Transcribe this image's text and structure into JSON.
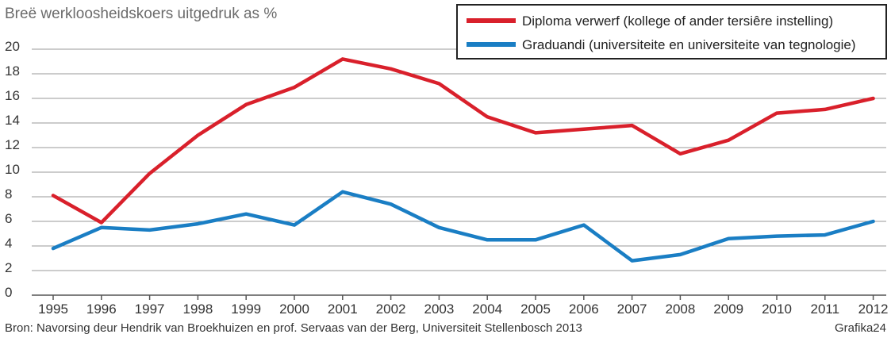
{
  "chart_data": {
    "type": "line",
    "title": "Breë werkloosheidskoers uitgedruk as %",
    "x": [
      "1995",
      "1996",
      "1997",
      "1998",
      "1999",
      "2000",
      "2001",
      "2002",
      "2003",
      "2004",
      "2005",
      "2006",
      "2007",
      "2008",
      "2009",
      "2010",
      "2011",
      "2012"
    ],
    "ylim": [
      0,
      20
    ],
    "yticks": [
      "0",
      "2",
      "4",
      "6",
      "8",
      "10",
      "12",
      "14",
      "16",
      "18",
      "20"
    ],
    "grid": true,
    "legend_placement": "top-right",
    "series": [
      {
        "name": "Diploma verwerf (kollege of ander tersiêre instelling)",
        "color": "#d9202b",
        "values": [
          8.1,
          5.9,
          9.9,
          13.0,
          15.5,
          16.9,
          19.2,
          18.4,
          17.2,
          14.5,
          13.2,
          13.5,
          13.8,
          11.5,
          12.6,
          14.8,
          15.1,
          16.0
        ]
      },
      {
        "name": "Graduandi (universiteite en universiteite van tegnologie)",
        "color": "#1a7ec4",
        "values": [
          3.8,
          5.5,
          5.3,
          5.8,
          6.6,
          5.7,
          8.4,
          7.4,
          5.5,
          4.5,
          4.5,
          5.7,
          2.8,
          3.3,
          4.6,
          4.8,
          4.9,
          6.0
        ]
      }
    ]
  },
  "footer": {
    "source": "Bron: Navorsing deur Hendrik van Broekhuizen en prof. Servaas van der Berg, Universiteit Stellenbosch 2013",
    "credit": "Grafika24"
  }
}
